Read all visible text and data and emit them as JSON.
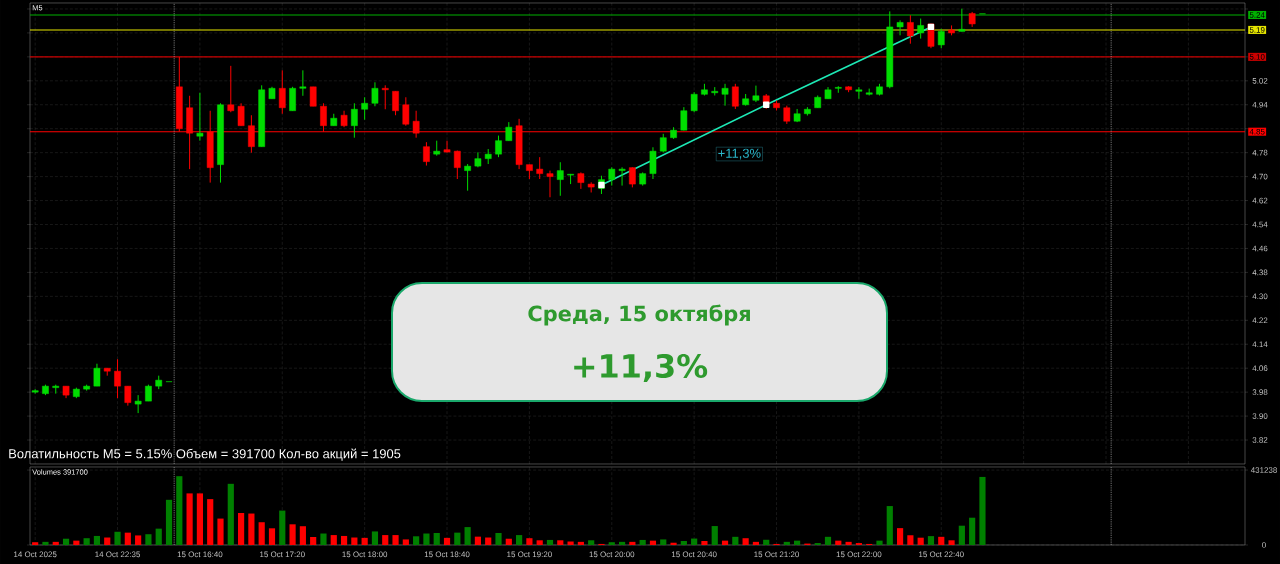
{
  "chart_data": [
    {
      "type": "candlestick",
      "title": "M5",
      "categories": [
        null,
        null,
        null,
        null,
        null,
        null,
        null,
        null,
        null,
        null,
        null,
        null,
        null,
        null,
        null,
        null,
        null,
        null,
        null,
        null,
        null,
        null,
        null,
        null,
        null,
        null,
        null,
        null,
        null,
        null,
        null,
        null,
        null,
        null,
        null,
        null,
        null,
        null,
        null,
        null,
        null,
        null,
        null,
        null,
        null,
        null,
        null,
        null,
        null,
        null,
        null,
        null,
        null,
        null,
        null,
        null,
        null,
        null,
        null,
        null,
        null,
        null,
        null,
        null,
        null,
        null,
        null,
        null,
        null,
        null,
        null,
        null,
        null,
        null,
        null,
        null,
        null,
        null,
        null,
        null,
        null,
        null,
        null,
        null,
        null,
        null,
        null,
        null,
        null,
        null,
        null,
        null,
        null,
        null,
        null,
        null,
        null,
        null,
        null,
        null,
        null,
        null,
        null,
        null,
        null,
        null,
        null,
        null,
        null,
        null,
        null,
        null,
        null,
        null,
        null,
        null,
        null,
        null
      ],
      "ohlc": [
        [
          3.98,
          3.99,
          3.975,
          3.985
        ],
        [
          3.975,
          4.005,
          3.97,
          4.0
        ],
        [
          3.995,
          4.005,
          3.975,
          4.0
        ],
        [
          4.0,
          4.0,
          3.96,
          3.97
        ],
        [
          3.965,
          3.995,
          3.96,
          3.99
        ],
        [
          3.99,
          4.005,
          3.985,
          4.0
        ],
        [
          4.0,
          4.075,
          4.0,
          4.06
        ],
        [
          4.06,
          4.06,
          4.035,
          4.05
        ],
        [
          4.05,
          4.09,
          3.96,
          4.0
        ],
        [
          4.0,
          4.0,
          3.935,
          3.945
        ],
        [
          3.94,
          3.97,
          3.91,
          3.95
        ],
        [
          3.95,
          4.005,
          3.95,
          4.0
        ],
        [
          4.0,
          4.035,
          3.99,
          4.02
        ],
        [
          4.015,
          4.015,
          4.015,
          4.015
        ],
        [
          5.0,
          5.1,
          4.85,
          4.86
        ],
        [
          4.93,
          4.97,
          4.725,
          4.845
        ],
        [
          4.835,
          4.98,
          4.82,
          4.845
        ],
        [
          4.85,
          4.92,
          4.68,
          4.73
        ],
        [
          4.74,
          4.945,
          4.68,
          4.94
        ],
        [
          4.94,
          5.07,
          4.915,
          4.92
        ],
        [
          4.935,
          4.945,
          4.87,
          4.87
        ],
        [
          4.87,
          4.905,
          4.78,
          4.8
        ],
        [
          4.8,
          5.005,
          4.8,
          4.99
        ],
        [
          4.96,
          5.0,
          4.96,
          4.995
        ],
        [
          4.995,
          5.055,
          4.91,
          4.93
        ],
        [
          4.92,
          5.0,
          4.92,
          4.995
        ],
        [
          4.995,
          5.055,
          4.97,
          5.0
        ],
        [
          5.0,
          5.0,
          4.935,
          4.935
        ],
        [
          4.935,
          4.945,
          4.85,
          4.87
        ],
        [
          4.87,
          4.91,
          4.87,
          4.895
        ],
        [
          4.905,
          4.92,
          4.865,
          4.87
        ],
        [
          4.87,
          4.945,
          4.83,
          4.925
        ],
        [
          4.925,
          4.965,
          4.89,
          4.945
        ],
        [
          4.945,
          5.015,
          4.935,
          4.995
        ],
        [
          4.995,
          5.005,
          4.925,
          4.99
        ],
        [
          4.985,
          4.985,
          4.905,
          4.92
        ],
        [
          4.94,
          4.965,
          4.87,
          4.875
        ],
        [
          4.885,
          4.92,
          4.83,
          4.845
        ],
        [
          4.8,
          4.815,
          4.737,
          4.75
        ],
        [
          4.775,
          4.82,
          4.77,
          4.785
        ],
        [
          4.79,
          4.82,
          4.78,
          4.782
        ],
        [
          4.785,
          4.787,
          4.692,
          4.73
        ],
        [
          4.72,
          4.742,
          4.653,
          4.735
        ],
        [
          4.735,
          4.781,
          4.731,
          4.76
        ],
        [
          4.76,
          4.792,
          4.742,
          4.775
        ],
        [
          4.775,
          4.837,
          4.765,
          4.82
        ],
        [
          4.82,
          4.882,
          4.82,
          4.865
        ],
        [
          4.87,
          4.893,
          4.725,
          4.74
        ],
        [
          4.74,
          4.74,
          4.692,
          4.72
        ],
        [
          4.725,
          4.765,
          4.692,
          4.71
        ],
        [
          4.71,
          4.72,
          4.631,
          4.7
        ],
        [
          4.69,
          4.748,
          4.636,
          4.72
        ],
        [
          4.705,
          4.709,
          4.675,
          4.708
        ],
        [
          4.71,
          4.714,
          4.659,
          4.68
        ],
        [
          4.675,
          4.681,
          4.647,
          4.665
        ],
        [
          4.66,
          4.703,
          4.642,
          4.69
        ],
        [
          4.69,
          4.731,
          4.67,
          4.725
        ],
        [
          4.72,
          4.731,
          4.67,
          4.725
        ],
        [
          4.73,
          4.731,
          4.664,
          4.675
        ],
        [
          4.675,
          4.714,
          4.67,
          4.71
        ],
        [
          4.71,
          4.798,
          4.692,
          4.785
        ],
        [
          4.785,
          4.843,
          4.781,
          4.83
        ],
        [
          4.83,
          4.865,
          4.826,
          4.855
        ],
        [
          4.855,
          4.932,
          4.854,
          4.92
        ],
        [
          4.92,
          4.982,
          4.915,
          4.975
        ],
        [
          4.975,
          5.01,
          4.971,
          4.99
        ],
        [
          4.98,
          4.999,
          4.971,
          4.985
        ],
        [
          4.975,
          5.01,
          4.937,
          4.995
        ],
        [
          5.0,
          5.01,
          4.926,
          4.935
        ],
        [
          4.94,
          4.976,
          4.937,
          4.96
        ],
        [
          4.955,
          5.004,
          4.949,
          4.97
        ],
        [
          4.97,
          4.976,
          4.926,
          4.945
        ],
        [
          4.945,
          4.954,
          4.921,
          4.93
        ],
        [
          4.93,
          4.937,
          4.876,
          4.885
        ],
        [
          4.885,
          4.926,
          4.882,
          4.91
        ],
        [
          4.91,
          4.932,
          4.904,
          4.925
        ],
        [
          4.93,
          4.971,
          4.93,
          4.965
        ],
        [
          4.96,
          4.999,
          4.96,
          4.99
        ],
        [
          4.995,
          5.002,
          4.98,
          4.998
        ],
        [
          5.0,
          5.002,
          4.982,
          4.99
        ],
        [
          4.985,
          4.999,
          4.96,
          4.99
        ],
        [
          4.975,
          4.994,
          4.971,
          4.98
        ],
        [
          4.975,
          5.01,
          4.971,
          5.0
        ],
        [
          5.0,
          5.252,
          4.995,
          5.2
        ],
        [
          5.2,
          5.222,
          5.172,
          5.215
        ],
        [
          5.215,
          5.239,
          5.144,
          5.17
        ],
        [
          5.18,
          5.228,
          5.161,
          5.205
        ],
        [
          5.21,
          5.211,
          5.129,
          5.135
        ],
        [
          5.14,
          5.194,
          5.129,
          5.185
        ],
        [
          5.19,
          5.205,
          5.172,
          5.18
        ],
        [
          5.185,
          5.261,
          5.185,
          5.192
        ],
        [
          5.245,
          5.25,
          5.2,
          5.21
        ],
        [
          5.244,
          5.244,
          5.244,
          5.244
        ],
        null,
        null,
        null,
        null,
        null,
        null,
        null,
        null,
        null,
        null,
        null,
        null,
        null,
        null,
        null,
        null,
        null,
        null,
        null,
        null,
        null,
        null,
        null,
        null,
        null
      ],
      "colors": [
        "#00dd00",
        "#00dd00",
        "#00dd00",
        "#ff0000",
        "#00dd00",
        "#00dd00",
        "#00dd00",
        "#ff0000",
        "#ff0000",
        "#ff0000",
        "#00dd00",
        "#00dd00",
        "#00dd00",
        "#00dd00",
        "#ff0000",
        "#ff0000",
        "#00dd00",
        "#ff0000",
        "#00dd00",
        "#ff0000",
        "#ff0000",
        "#ff0000",
        "#00dd00",
        "#00dd00",
        "#ff0000",
        "#00dd00",
        "#00dd00",
        "#ff0000",
        "#ff0000",
        "#00dd00",
        "#ff0000",
        "#00dd00",
        "#00dd00",
        "#00dd00",
        "#ff0000",
        "#ff0000",
        "#ff0000",
        "#ff0000",
        "#ff0000",
        "#00dd00",
        "#ff0000",
        "#ff0000",
        "#00dd00",
        "#00dd00",
        "#00dd00",
        "#00dd00",
        "#00dd00",
        "#ff0000",
        "#ff0000",
        "#ff0000",
        "#ff0000",
        "#00dd00",
        "#00dd00",
        "#ff0000",
        "#ff0000",
        "#00dd00",
        "#00dd00",
        "#00dd00",
        "#ff0000",
        "#00dd00",
        "#00dd00",
        "#00dd00",
        "#00dd00",
        "#00dd00",
        "#00dd00",
        "#00dd00",
        "#00dd00",
        "#00dd00",
        "#ff0000",
        "#00dd00",
        "#00dd00",
        "#ff0000",
        "#ff0000",
        "#ff0000",
        "#00dd00",
        "#00dd00",
        "#00dd00",
        "#00dd00",
        "#00dd00",
        "#ff0000",
        "#00dd00",
        "#00dd00",
        "#00dd00",
        "#00dd00",
        "#00dd00",
        "#ff0000",
        "#00dd00",
        "#ff0000",
        "#00dd00",
        "#ff0000",
        "#00dd00",
        "#ff0000",
        "#00dd00",
        null,
        null,
        null,
        null,
        null,
        null,
        null,
        null,
        null,
        null,
        null,
        null,
        null,
        null,
        null,
        null,
        null,
        null,
        null,
        null,
        null,
        null,
        null,
        null,
        null
      ],
      "series": [
        {
          "type": "line",
          "color": "#1de9b6",
          "values": [
            null,
            null,
            null,
            null,
            null,
            null,
            null,
            null,
            null,
            null,
            null,
            null,
            null,
            null,
            null,
            null,
            null,
            null,
            null,
            null,
            null,
            null,
            null,
            null,
            null,
            null,
            null,
            null,
            null,
            null,
            null,
            null,
            null,
            null,
            null,
            null,
            null,
            null,
            null,
            null,
            null,
            null,
            null,
            null,
            null,
            null,
            null,
            null,
            null,
            null,
            null,
            null,
            null,
            null,
            null,
            4.672,
            null,
            null,
            null,
            null,
            null,
            null,
            null,
            null,
            null,
            null,
            null,
            null,
            null,
            null,
            null,
            4.94,
            null,
            null,
            null,
            null,
            null,
            null,
            null,
            null,
            null,
            null,
            null,
            null,
            null,
            null,
            null,
            5.2,
            null,
            null,
            null,
            null,
            null,
            null,
            null,
            null,
            null,
            null,
            null,
            null,
            null,
            null,
            null,
            null,
            null,
            null,
            null,
            null,
            null,
            null,
            null,
            null,
            null,
            null,
            null,
            null,
            null,
            null
          ]
        }
      ],
      "marker": "square",
      "ylim": [
        3.74,
        5.28
      ],
      "yticks": [
        3.82,
        {
          "value": 3.9,
          "label": "3.90"
        },
        3.98,
        4.06,
        4.14,
        4.22,
        {
          "value": 4.3,
          "label": "4.30"
        },
        4.38,
        4.46,
        4.54,
        4.62,
        {
          "value": 4.7,
          "label": "4.70"
        },
        4.78,
        {
          "value": 4.86,
          "label": null
        },
        4.94,
        5.02,
        {
          "value": 5.1,
          "label": null
        },
        {
          "value": 5.18,
          "label": null
        },
        {
          "value": 5.26,
          "label": null
        }
      ],
      "grid": true,
      "ref_lines": [
        {
          "axis": "y",
          "value": 5.24,
          "label": "5.24",
          "color": "#00b000"
        },
        {
          "axis": "y",
          "value": 5.19,
          "label": "5.19",
          "color": "#e6e600"
        },
        {
          "axis": "y",
          "value": 5.1,
          "label": "5.10",
          "color": "#cc0000"
        },
        {
          "axis": "y",
          "value": 4.85,
          "label": "4.85",
          "color": "#ff0000"
        }
      ],
      "annotations": [
        "+11,3%",
        "Среда, 15 октября",
        "+11,3%",
        "Волатильность M5 = 5.15% Объем = 391700 Кол-во акций = 1905"
      ]
    },
    {
      "type": "bar",
      "title": "Volumes 391700",
      "categories": [
        "14 Oct 2025",
        null,
        null,
        null,
        null,
        null,
        null,
        null,
        "14 Oct 22:35",
        null,
        null,
        null,
        null,
        null,
        null,
        null,
        "15 Oct 16:40",
        null,
        null,
        null,
        null,
        null,
        null,
        null,
        "15 Oct 17:20",
        null,
        null,
        null,
        null,
        null,
        null,
        null,
        "15 Oct 18:00",
        null,
        null,
        null,
        null,
        null,
        null,
        null,
        "15 Oct 18:40",
        null,
        null,
        null,
        null,
        null,
        null,
        null,
        "15 Oct 19:20",
        null,
        null,
        null,
        null,
        null,
        null,
        null,
        "15 Oct 20:00",
        null,
        null,
        null,
        null,
        null,
        null,
        null,
        "15 Oct 20:40",
        null,
        null,
        null,
        null,
        null,
        null,
        null,
        "15 Oct 21:20",
        null,
        null,
        null,
        null,
        null,
        null,
        null,
        "15 Oct 22:00",
        null,
        null,
        null,
        null,
        null,
        null,
        null,
        "15 Oct 22:40",
        null,
        null,
        null,
        null,
        null,
        null,
        null,
        null,
        null,
        null,
        null,
        null,
        null,
        null,
        null,
        null,
        null,
        null,
        null,
        null,
        null,
        null,
        null,
        null,
        null,
        null,
        null,
        null,
        null
      ],
      "values": [
        16000,
        18000,
        18000,
        36000,
        25000,
        39000,
        52000,
        43000,
        76000,
        71000,
        55000,
        62000,
        94000,
        260000,
        396000,
        297000,
        297000,
        264000,
        152000,
        352000,
        184000,
        181000,
        131000,
        96000,
        198000,
        119000,
        108000,
        46000,
        66000,
        57000,
        52000,
        43000,
        41000,
        78000,
        57000,
        57000,
        32000,
        50000,
        66000,
        69000,
        41000,
        71000,
        103000,
        48000,
        43000,
        69000,
        36000,
        57000,
        39000,
        27000,
        29000,
        27000,
        20000,
        18000,
        27000,
        6000,
        16000,
        18000,
        18000,
        29000,
        25000,
        32000,
        13000,
        23000,
        37000,
        23000,
        109000,
        25000,
        47000,
        39000,
        18000,
        30000,
        6000,
        18000,
        25000,
        8000,
        11000,
        47000,
        25000,
        18000,
        11000,
        6000,
        25000,
        224000,
        97000,
        56000,
        42000,
        51000,
        47000,
        27000,
        111000,
        157000,
        391700,
        null,
        null,
        null,
        null,
        null,
        null,
        null,
        null,
        null,
        null,
        null,
        null,
        null,
        null,
        null,
        null,
        null,
        null,
        null,
        null,
        null,
        null,
        null,
        null,
        null
      ],
      "colors": [
        "#ff0000",
        "#008000",
        "#ff0000",
        "#008000",
        "#ff0000",
        "#008000",
        "#008000",
        "#ff0000",
        "#008000",
        "#ff0000",
        "#ff0000",
        "#008000",
        "#008000",
        "#008000",
        "#008000",
        "#ff0000",
        "#ff0000",
        "#ff0000",
        "#ff0000",
        "#008000",
        "#ff0000",
        "#ff0000",
        "#ff0000",
        "#ff0000",
        "#008000",
        "#ff0000",
        "#ff0000",
        "#ff0000",
        "#008000",
        "#ff0000",
        "#ff0000",
        "#ff0000",
        "#ff0000",
        "#008000",
        "#ff0000",
        "#ff0000",
        "#ff0000",
        "#008000",
        "#008000",
        "#008000",
        "#ff0000",
        "#008000",
        "#008000",
        "#ff0000",
        "#ff0000",
        "#008000",
        "#ff0000",
        "#008000",
        "#ff0000",
        "#ff0000",
        "#008000",
        "#ff0000",
        "#ff0000",
        "#ff0000",
        "#008000",
        "#ff0000",
        "#008000",
        "#008000",
        "#ff0000",
        "#008000",
        "#ff0000",
        "#008000",
        "#ff0000",
        "#008000",
        "#008000",
        "#ff0000",
        "#008000",
        "#ff0000",
        "#008000",
        "#ff0000",
        "#ff0000",
        "#008000",
        "#ff0000",
        "#008000",
        "#008000",
        "#ff0000",
        "#008000",
        "#008000",
        "#ff0000",
        "#ff0000",
        "#ff0000",
        "#ff0000",
        "#008000",
        "#008000",
        "#ff0000",
        "#ff0000",
        "#ff0000",
        "#008000",
        "#ff0000",
        "#ff0000",
        "#008000",
        "#008000",
        "#008000",
        null,
        null,
        null,
        null,
        null,
        null,
        null,
        null,
        null,
        null,
        null,
        null,
        null,
        null,
        null,
        null,
        null,
        null,
        null,
        null,
        null,
        null,
        null,
        null,
        null
      ],
      "ylim": [
        0,
        449000
      ],
      "yticks": [
        {
          "value": 0,
          "label": "0"
        },
        {
          "value": 431238,
          "label": "431238"
        }
      ],
      "grid": true
    }
  ]
}
